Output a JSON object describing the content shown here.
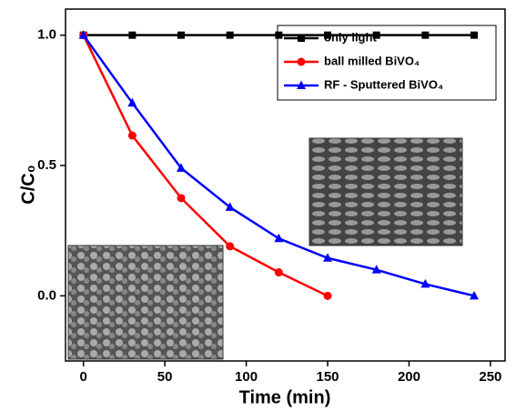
{
  "chart_data": {
    "type": "line",
    "x_label": "Time (min)",
    "y_label": "C/C₀",
    "xlim": [
      -11,
      259
    ],
    "ylim": [
      -0.25,
      1.1
    ],
    "xticks": [
      0,
      50,
      100,
      150,
      200,
      250
    ],
    "yticks": [
      {
        "value": 0,
        "label": "0.0"
      },
      {
        "value": 0.5,
        "label": "0.5"
      },
      {
        "value": 1,
        "label": "1.0"
      }
    ],
    "series": [
      {
        "name": "only light",
        "color": "#000000",
        "marker": "square",
        "x": [
          0,
          30,
          60,
          90,
          120,
          150,
          180,
          210,
          240
        ],
        "values": [
          1,
          1,
          1,
          1,
          1,
          1,
          1,
          1,
          1
        ]
      },
      {
        "name": "ball milled BiVO₄",
        "color": "#ff0000",
        "marker": "circle",
        "x": [
          0,
          30,
          60,
          90,
          120,
          150
        ],
        "values": [
          1,
          0.615,
          0.375,
          0.19,
          0.09,
          0
        ]
      },
      {
        "name": "RF - Sputtered BiVO₄",
        "color": "#0000ff",
        "marker": "triangle",
        "x": [
          0,
          30,
          60,
          90,
          120,
          150,
          180,
          210,
          240
        ],
        "values": [
          1,
          0.74,
          0.49,
          0.34,
          0.22,
          0.145,
          0.1,
          0.045,
          0
        ]
      }
    ]
  }
}
